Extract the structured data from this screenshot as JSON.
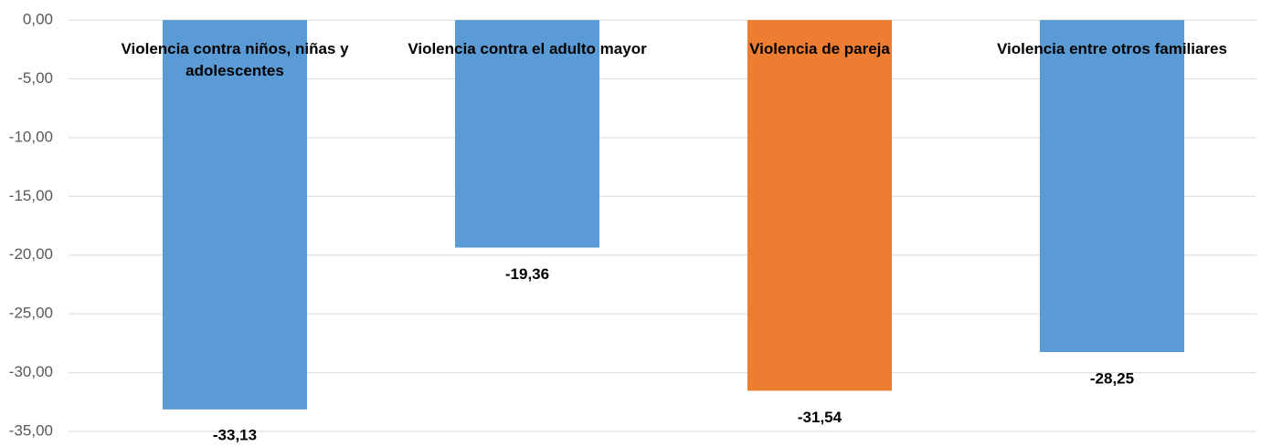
{
  "chart_data": {
    "type": "bar",
    "categories": [
      "Violencia contra niños, niñas y adolescentes",
      "Violencia contra el adulto mayor",
      "Violencia de pareja",
      "Violencia entre otros familiares"
    ],
    "values": [
      -33.13,
      -19.36,
      -31.54,
      -28.25
    ],
    "value_labels": [
      "-33,13",
      "-19,36",
      "-31,54",
      "-28,25"
    ],
    "colors": [
      "#5b9bd5",
      "#5b9bd5",
      "#ed7d31",
      "#5b9bd5"
    ],
    "ylim": [
      -35,
      0
    ],
    "yticks": [
      {
        "value": 0,
        "label": "0,00"
      },
      {
        "value": -5,
        "label": "-5,00"
      },
      {
        "value": -10,
        "label": "-10,00"
      },
      {
        "value": -15,
        "label": "-15,00"
      },
      {
        "value": -20,
        "label": "-20,00"
      },
      {
        "value": -25,
        "label": "-25,00"
      },
      {
        "value": -30,
        "label": "-30,00"
      },
      {
        "value": -35,
        "label": "-35,00"
      }
    ],
    "grid": true
  }
}
